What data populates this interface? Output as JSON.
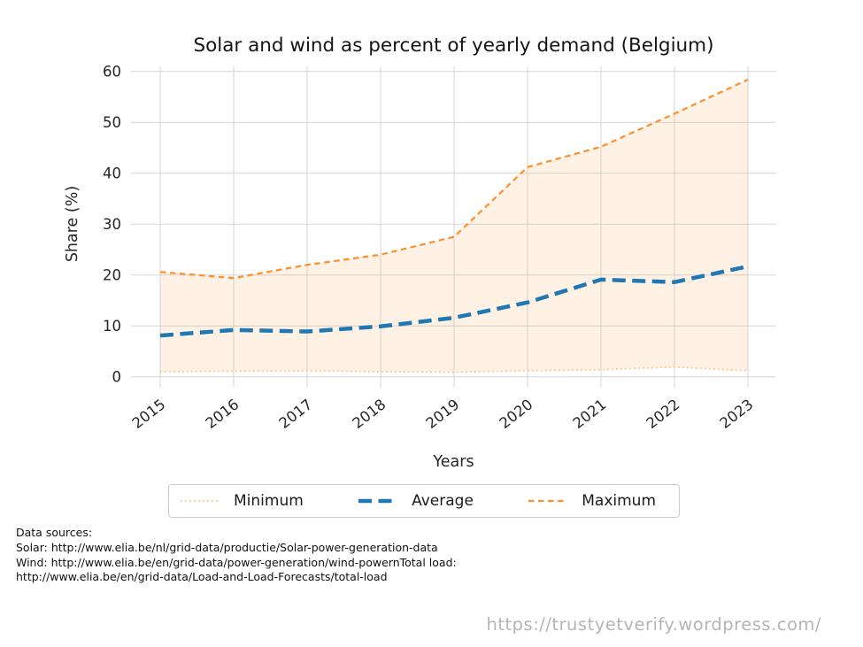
{
  "title": "Solar and wind as percent of yearly demand (Belgium)",
  "chart_data": {
    "type": "line",
    "title": "Solar and wind as percent of yearly demand (Belgium)",
    "xlabel": "Years",
    "ylabel": "Share (%)",
    "x": [
      2015,
      2016,
      2017,
      2018,
      2019,
      2020,
      2021,
      2022,
      2023
    ],
    "yticks": [
      0,
      10,
      20,
      30,
      40,
      50,
      60
    ],
    "ylim": [
      -2,
      61
    ],
    "grid": true,
    "legend_position": "bottom-center",
    "band_fill_color": "rgba(255,153,51,0.13)",
    "series": [
      {
        "name": "Minimum",
        "style": "dotted",
        "color": "#ffc38a",
        "width": 1.8,
        "values": [
          1.0,
          1.1,
          1.2,
          1.0,
          0.9,
          1.2,
          1.4,
          1.9,
          1.2
        ]
      },
      {
        "name": "Average",
        "style": "dashed-heavy",
        "color": "#1f77b4",
        "width": 4.5,
        "values": [
          8.1,
          9.2,
          8.9,
          9.9,
          11.6,
          14.6,
          19.1,
          18.6,
          21.7
        ]
      },
      {
        "name": "Maximum",
        "style": "dashed",
        "color": "#ff8e2c",
        "width": 2.2,
        "values": [
          20.6,
          19.4,
          22.0,
          24.0,
          27.5,
          41.2,
          45.2,
          51.7,
          58.4
        ]
      }
    ]
  },
  "footer": {
    "lines": [
      "Data sources:",
      "Solar: http://www.elia.be/nl/grid-data/productie/Solar-power-generation-data",
      "Wind: http://www.elia.be/en/grid-data/power-generation/wind-powernTotal load:",
      "http://www.elia.be/en/grid-data/Load-and-Load-Forecasts/total-load"
    ]
  },
  "watermark": "https://trustyetverify.wordpress.com/"
}
